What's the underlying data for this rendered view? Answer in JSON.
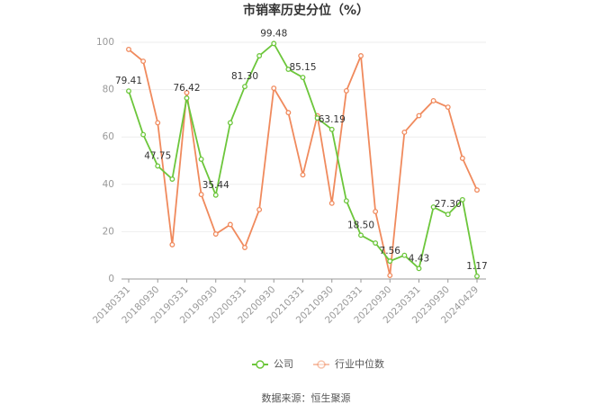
{
  "chart_data": {
    "type": "line",
    "title": "市销率历史分位（%）",
    "categories": [
      "20180331",
      null,
      "20180930",
      null,
      "20190331",
      null,
      "20190930",
      null,
      "20200331",
      null,
      "20200930",
      null,
      "20210331",
      null,
      "20210930",
      null,
      "20220331",
      null,
      "20220930",
      null,
      "20230331",
      null,
      "20230930",
      null,
      "20240429"
    ],
    "series": [
      {
        "name": "公司",
        "color": "#6cc63b",
        "values": [
          79.41,
          61,
          47.75,
          42.2,
          76.42,
          50.6,
          35.44,
          66,
          81.3,
          94.3,
          99.48,
          88.6,
          85.15,
          68,
          63.19,
          33,
          18.5,
          15.2,
          7.56,
          10,
          4.43,
          30.4,
          27.3,
          33.5,
          1.17
        ],
        "value_labels": [
          "79.41",
          null,
          "47.75",
          null,
          "76.42",
          null,
          "35.44",
          null,
          "81.30",
          null,
          "99.48",
          null,
          "85.15",
          null,
          "63.19",
          null,
          "18.50",
          null,
          "7.56",
          null,
          "4.43",
          null,
          "27.30",
          null,
          "1.17"
        ]
      },
      {
        "name": "行业中位数",
        "color": "#f08a5d",
        "values": [
          97,
          92,
          66,
          14.5,
          78.7,
          35.7,
          19,
          23,
          13.3,
          29.3,
          80.6,
          70.3,
          44,
          69,
          32,
          79.5,
          94.3,
          28.5,
          1.5,
          62,
          69,
          75.3,
          72.6,
          51,
          37.6
        ]
      }
    ],
    "ylim": [
      0,
      100
    ],
    "yticks": [
      0,
      20,
      40,
      60,
      80,
      100
    ],
    "grid": true,
    "legend": "bottom",
    "source": "数据来源：恒生聚源"
  }
}
